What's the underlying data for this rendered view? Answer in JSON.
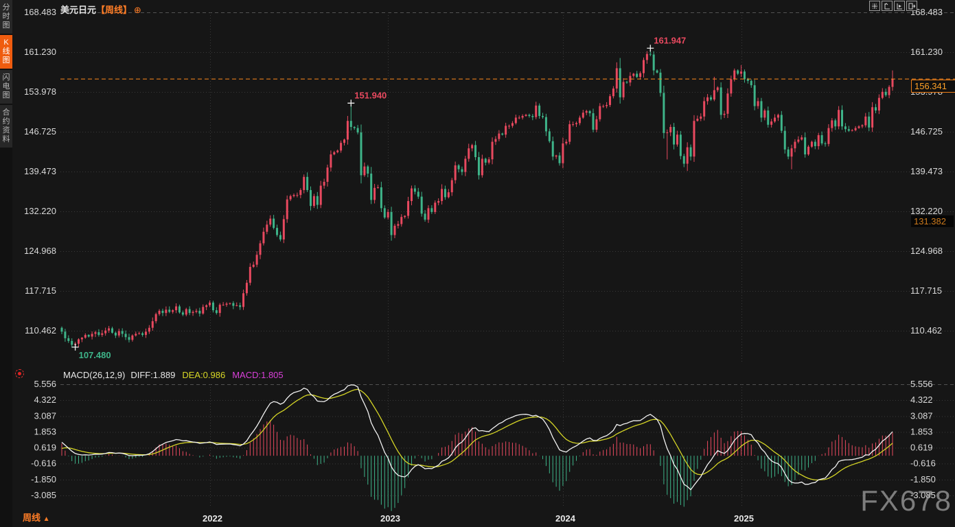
{
  "sidebar": {
    "tabs": [
      {
        "label": "分时图",
        "active": false
      },
      {
        "label": "K线图",
        "active": true
      },
      {
        "label": "闪电图",
        "active": false
      },
      {
        "label": "合约资料",
        "active": false
      }
    ]
  },
  "header": {
    "symbol": "美元日元",
    "period": "【周线】",
    "zoom_glyph": "⊕"
  },
  "toolbar_icons": [
    "crosshair-icon",
    "y-axis-scale-icon",
    "x-axis-scale-icon",
    "fullscreen-exit-icon"
  ],
  "macd_panel": {
    "title": "MACD(26,12,9)",
    "diff": "DIFF:1.889",
    "dea": "DEA:0.986",
    "macd": "MACD:1.805"
  },
  "footer": {
    "period_label": "周线",
    "arrow": "▲"
  },
  "watermark": "FX678",
  "current_price": {
    "value": "156.341"
  },
  "secondary_price": {
    "value": "131.382"
  },
  "colors": {
    "up": "#e8495f",
    "down": "#3eb489",
    "grid": "#3a3a3a",
    "panel_border": "#525252",
    "axis_text": "#dadada",
    "diff_line": "#f2f2f2",
    "dea_line": "#d4d426",
    "accent_orange": "#ff8a1e",
    "active_tab": "#ef5c0f"
  },
  "chart_data": {
    "type": "candlestick",
    "title": "美元日元 周线 (USD/JPY weekly)",
    "indicator": "MACD(26,12,9)",
    "price_ticks": [
      "168.483",
      "161.230",
      "153.978",
      "146.725",
      "139.473",
      "132.220",
      "124.968",
      "117.715",
      "110.462"
    ],
    "macd_ticks": [
      "5.556",
      "4.322",
      "3.087",
      "1.853",
      "0.619",
      "-0.616",
      "-1.850",
      "-3.085"
    ],
    "years": [
      {
        "label": "2022",
        "index": 44
      },
      {
        "label": "2023",
        "index": 97
      },
      {
        "label": "2024",
        "index": 149
      },
      {
        "label": "2025",
        "index": 202
      }
    ],
    "current_price": 156.341,
    "secondary_price": 131.382,
    "first_open": 111.0,
    "closes": [
      110.3,
      109.1,
      108.6,
      107.9,
      108.1,
      108.9,
      109.2,
      109.7,
      109.4,
      109.9,
      110.2,
      109.7,
      110.0,
      110.5,
      110.9,
      110.1,
      109.6,
      110.4,
      109.9,
      109.3,
      108.8,
      109.6,
      109.9,
      110.0,
      109.7,
      110.3,
      111.0,
      112.2,
      113.5,
      114.1,
      113.7,
      114.3,
      113.9,
      114.2,
      114.9,
      113.8,
      113.4,
      114.4,
      113.7,
      113.9,
      114.1,
      113.6,
      114.8,
      115.1,
      115.6,
      114.2,
      113.7,
      115.2,
      115.2,
      115.4,
      115.5,
      115.0,
      115.1,
      114.8,
      117.3,
      119.2,
      122.1,
      122.5,
      124.3,
      126.4,
      128.5,
      129.8,
      130.9,
      129.2,
      127.9,
      127.1,
      130.8,
      134.4,
      135.0,
      135.2,
      135.2,
      136.1,
      138.5,
      136.1,
      133.2,
      135.0,
      133.4,
      136.9,
      137.6,
      140.2,
      142.6,
      143.0,
      143.3,
      144.7,
      145.3,
      148.7,
      147.6,
      147.4,
      146.6,
      138.8,
      140.4,
      139.1,
      134.3,
      136.5,
      136.6,
      132.8,
      131.1,
      132.1,
      127.9,
      129.6,
      129.9,
      131.2,
      131.4,
      134.1,
      136.4,
      135.8,
      134.9,
      131.8,
      130.7,
      132.8,
      132.1,
      133.8,
      134.1,
      136.3,
      134.8,
      135.7,
      137.9,
      140.6,
      139.9,
      139.4,
      141.8,
      143.7,
      144.3,
      142.1,
      138.8,
      141.8,
      141.1,
      141.7,
      144.9,
      145.4,
      146.4,
      146.2,
      147.8,
      147.8,
      148.3,
      149.3,
      149.3,
      149.6,
      149.8,
      149.6,
      149.4,
      151.5,
      149.6,
      149.4,
      146.8,
      145.0,
      142.2,
      142.4,
      141.0,
      144.6,
      144.9,
      148.1,
      148.1,
      148.3,
      149.3,
      150.2,
      150.5,
      150.1,
      147.1,
      149.0,
      151.4,
      151.4,
      151.6,
      153.2,
      154.6,
      158.3,
      153.0,
      155.8,
      155.7,
      156.9,
      157.3,
      156.7,
      157.4,
      159.8,
      160.9,
      160.8,
      157.9,
      157.5,
      153.8,
      146.5,
      146.6,
      147.6,
      144.4,
      146.2,
      142.3,
      140.9,
      143.9,
      142.2,
      148.7,
      149.1,
      149.5,
      152.3,
      153.0,
      152.6,
      154.3,
      154.8,
      149.8,
      150.0,
      153.7,
      156.3,
      157.9,
      157.3,
      157.7,
      156.3,
      156.0,
      155.2,
      151.4,
      152.3,
      149.3,
      150.6,
      148.0,
      148.6,
      149.3,
      149.8,
      146.9,
      143.5,
      142.2,
      143.7,
      144.9,
      145.3,
      145.7,
      142.6,
      144.0,
      144.9,
      144.1,
      146.1,
      144.6,
      144.5,
      147.4,
      148.8,
      147.7,
      150.7,
      147.7,
      147.2,
      146.9,
      147.0,
      147.4,
      147.7,
      147.9,
      149.5,
      147.5,
      151.2,
      150.6,
      152.9,
      154.0,
      153.4,
      154.9,
      156.341
    ],
    "wick_overrides": {
      "4": {
        "low": 107.48
      },
      "86": {
        "high": 151.94
      },
      "166": {
        "high": 160.17
      },
      "175": {
        "high": 161.947
      },
      "180": {
        "low": 141.68
      },
      "186": {
        "low": 139.58
      },
      "194": {
        "high": 156.74
      },
      "202": {
        "high": 158.87
      },
      "217": {
        "low": 139.89
      },
      "247": {
        "high": 157.9,
        "low": 154.2
      }
    },
    "key_points": [
      {
        "index": 4,
        "price": 107.48,
        "label": "107.480",
        "dir": "low",
        "color": "#3eb489"
      },
      {
        "index": 86,
        "price": 151.94,
        "label": "151.940",
        "dir": "high",
        "color": "#e8495f"
      },
      {
        "index": 175,
        "price": 161.947,
        "label": "161.947",
        "dir": "high",
        "color": "#e8495f"
      }
    ],
    "macd_display": {
      "diff": 1.889,
      "dea": 0.986,
      "macd": 1.805
    }
  }
}
